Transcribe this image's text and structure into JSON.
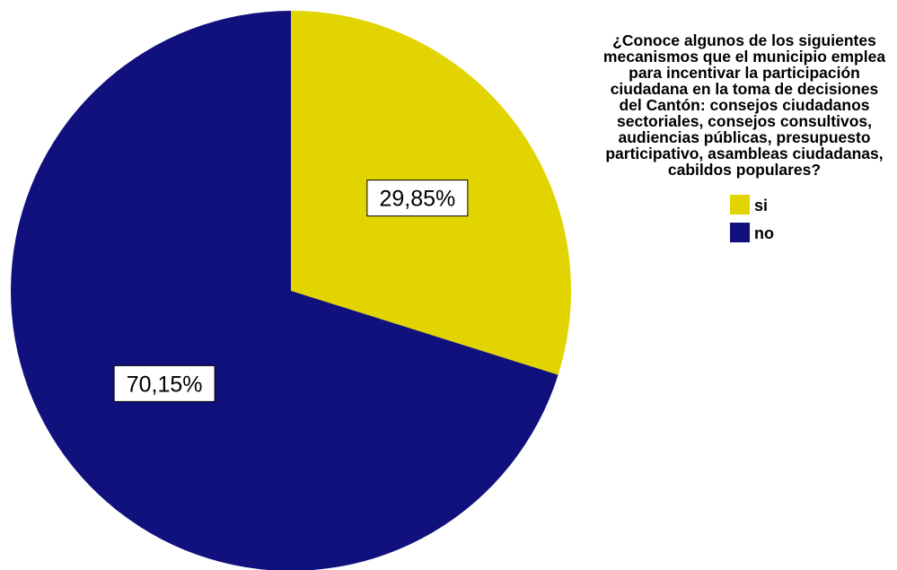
{
  "chart_data": {
    "type": "pie",
    "title": "",
    "legend_title": "¿Conoce algunos de los siguientes mecanismos que el municipio emplea para incentivar la participación ciudadana en la toma de decisiones del Cantón: consejos ciudadanos sectoriales, consejos consultivos, audiencias públicas, presupuesto participativo, asambleas ciudadanas, cabildos populares?",
    "legend_placement": "right",
    "slices": [
      {
        "label": "si",
        "value": 29.85,
        "display": "29,85%",
        "color": "#e2d400"
      },
      {
        "label": "no",
        "value": 70.15,
        "display": "70,15%",
        "color": "#11117e"
      }
    ]
  }
}
